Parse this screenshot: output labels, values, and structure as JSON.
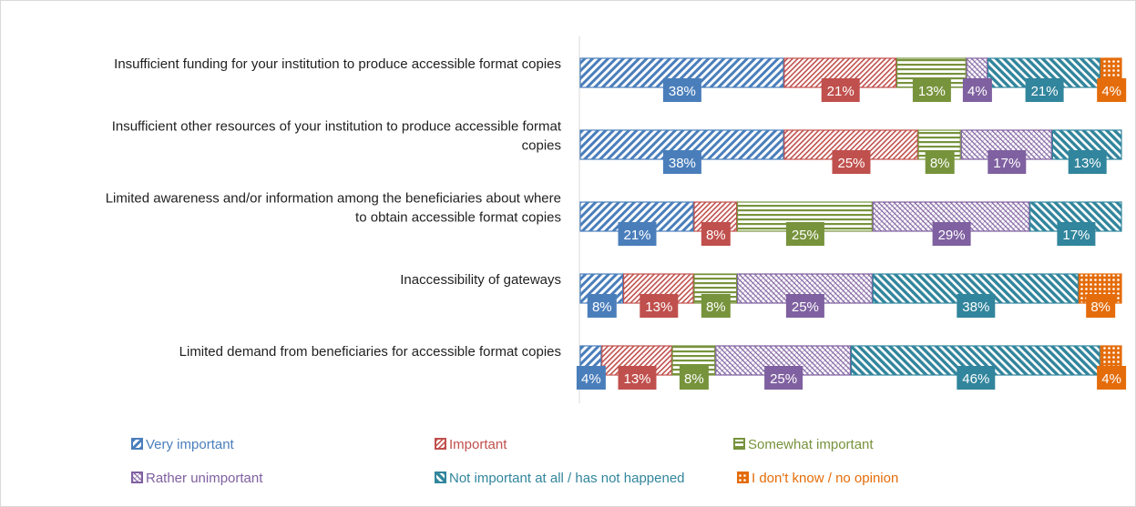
{
  "chart_data": {
    "type": "bar",
    "orientation": "horizontal",
    "stacked": "100%",
    "title": "",
    "xlabel": "",
    "ylabel": "",
    "grid": false,
    "legend_position": "bottom",
    "value_suffix": "%",
    "categories": [
      "Insufficient funding for your institution to produce accessible format copies",
      "Insufficient other resources of your institution to produce accessible format copies",
      "Limited awareness and/or information among the beneficiaries about where to obtain accessible format copies",
      "Inaccessibility of gateways",
      "Limited demand from beneficiaries for accessible format copies"
    ],
    "category_lines": [
      [
        "Insufficient funding for your institution to produce accessible format copies"
      ],
      [
        "Insufficient other resources of your institution to produce accessible format",
        "copies"
      ],
      [
        "Limited awareness and/or information among the beneficiaries about where",
        "to obtain accessible format copies"
      ],
      [
        "Inaccessibility of gateways"
      ],
      [
        "Limited demand from beneficiaries for accessible format copies"
      ]
    ],
    "series": [
      {
        "name": "Very important",
        "color": "#4a7ebb",
        "pattern": "diagonal-hatch",
        "values": [
          38,
          38,
          21,
          8,
          4
        ]
      },
      {
        "name": "Important",
        "color": "#c0504d",
        "pattern": "dense-diagonal",
        "values": [
          21,
          25,
          8,
          13,
          13
        ]
      },
      {
        "name": "Somewhat important",
        "color": "#77933c",
        "pattern": "horizontal-lines",
        "values": [
          13,
          8,
          25,
          8,
          8
        ]
      },
      {
        "name": "Rather unimportant",
        "color": "#7f60a0",
        "pattern": "crosshatch",
        "values": [
          4,
          17,
          29,
          25,
          25
        ]
      },
      {
        "name": "Not important at all / has not happened",
        "color": "#31859c",
        "pattern": "wide-diagonal",
        "values": [
          21,
          13,
          17,
          38,
          46
        ]
      },
      {
        "name": "I don't know / no opinion",
        "color": "#e46c0a",
        "pattern": "dots",
        "values": [
          4,
          0,
          0,
          8,
          4
        ]
      }
    ]
  }
}
